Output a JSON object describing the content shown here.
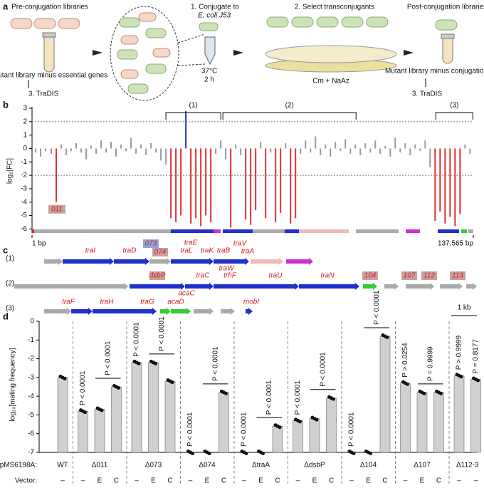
{
  "panel_labels": [
    "a",
    "b",
    "c",
    "d"
  ],
  "panel_a": {
    "pre_title": "Pre-conjugation libraries",
    "pre_caption": "Mutant library minus essential genes",
    "pre_tradis": "3. TraDIS",
    "step1": "1. Conjugate to",
    "step1_strain": "E. coli J53",
    "temp": "37°C",
    "time": "2 h",
    "step2": "2. Select transconjugants",
    "selection": "Cm + NaAz",
    "post_title": "Post-conjugation libraries",
    "post_caption": "Mutant library minus conjugation genes",
    "post_tradis": "3. TraDIS"
  },
  "chart_data": [
    {
      "type": "bar",
      "ylabel": "log₂[FC]",
      "xlim": [
        1,
        137565
      ],
      "xticks": [
        {
          "value": 1,
          "label": "1 bp"
        },
        {
          "value": 137565,
          "label": "137,565 bp"
        }
      ],
      "ylim": [
        -6.3,
        3
      ],
      "yticks": [
        -6,
        -5,
        -4,
        -3,
        -2,
        -1,
        0,
        1,
        2,
        3
      ],
      "reference_lines": [
        2,
        -2
      ],
      "regions": [
        {
          "label": "(1)",
          "start": 41736,
          "end": 58830
        },
        {
          "label": "(2)",
          "start": 59496,
          "end": 101010
        },
        {
          "label": "(3)",
          "start": 125874,
          "end": 137418
        }
      ],
      "series": [
        {
          "name": "grey",
          "color": "#9a9a9a",
          "x": [
            1110,
            2664,
            4218,
            5994,
            9102,
            10656,
            12210,
            13764,
            15318,
            16872,
            18426,
            19980,
            21534,
            23088,
            24642,
            26196,
            27750,
            29304,
            30858,
            32412,
            33966,
            35520,
            37074,
            38628,
            40182,
            41736,
            57276,
            58830,
            60384,
            63492,
            65046,
            71262,
            74370,
            79032,
            83694,
            85248,
            86802,
            88356,
            89910,
            91464,
            93018,
            94572,
            96126,
            97680,
            99234,
            100788,
            102342,
            103896,
            105450,
            107004,
            108558,
            110112,
            111666,
            113220,
            114774,
            116328,
            117882,
            119436,
            120990,
            122544,
            124098,
            134976,
            136530
          ],
          "values": [
            -0.3,
            -0.6,
            -0.2,
            -0.4,
            0.3,
            -0.5,
            -0.2,
            0.4,
            -0.3,
            -0.8,
            0.2,
            -0.4,
            0.6,
            -0.3,
            0.5,
            -0.6,
            0.3,
            -0.2,
            0.8,
            -0.4,
            0.3,
            -0.5,
            0.4,
            -0.3,
            -0.9,
            -1.2,
            -0.4,
            0.6,
            -0.8,
            0.3,
            -0.5,
            0.5,
            -0.3,
            0.4,
            -0.4,
            0.6,
            -0.3,
            0.9,
            -0.5,
            0.3,
            -0.6,
            0.5,
            -0.2,
            0.7,
            -0.4,
            0.3,
            -0.5,
            0.4,
            -0.3,
            0.6,
            -0.4,
            0.2,
            -0.6,
            0.8,
            -0.3,
            0.4,
            -0.5,
            0.3,
            -0.2,
            0.6,
            -1.4,
            0.3,
            -0.4
          ]
        },
        {
          "name": "red",
          "color": "#e03030",
          "x": [
            7548,
            43290,
            44844,
            46398,
            49506,
            51060,
            52614,
            54168,
            55722,
            61938,
            66600,
            68154,
            69708,
            72816,
            75924,
            77478,
            80586,
            82140,
            125652,
            127206,
            128760,
            130314,
            131868,
            133422
          ],
          "values": [
            -4,
            -5.2,
            -5.5,
            -5.0,
            -5.6,
            -5.2,
            -5.8,
            -5.0,
            -5.5,
            -5.9,
            -5.3,
            -5.7,
            -4.6,
            -5.2,
            -5.5,
            -4.8,
            -5.6,
            -5.2,
            -5.4,
            -4.7,
            -5.6,
            -5.1,
            -5.8,
            -4.9
          ],
          "gene_labels": [
            "011",
            null,
            null,
            null,
            null,
            null,
            null,
            null,
            null,
            null,
            null,
            null,
            null,
            null,
            null,
            null,
            null,
            null,
            null,
            null,
            null,
            null,
            null,
            null
          ]
        },
        {
          "name": "blue",
          "color": "#2030d0",
          "x": [
            47952
          ],
          "values": [
            2.8
          ]
        }
      ]
    },
    {
      "type": "bar",
      "ylabel": "log₁₀[mating frequency]",
      "ylim": [
        -7,
        0
      ],
      "yticks": [
        0,
        -1,
        -2,
        -3,
        -4,
        -5,
        -6,
        -7
      ],
      "row_labels": [
        "pMS6198A:",
        "Vector:"
      ],
      "groups": [
        {
          "strain": "WT",
          "vectors": [
            "–"
          ],
          "values": [
            -3.0
          ],
          "p_labels": [
            null
          ]
        },
        {
          "strain": "Δ011",
          "vectors": [
            "–",
            "E",
            "C"
          ],
          "values": [
            -4.8,
            -4.7,
            -3.5
          ],
          "p_labels": [
            "P < 0.0001",
            null,
            "P < 0.0001"
          ]
        },
        {
          "strain": "Δ073",
          "vectors": [
            "–",
            "E",
            "C"
          ],
          "values": [
            -2.2,
            -2.2,
            -3.2
          ],
          "p_labels": [
            "P < 0.0001",
            null,
            "P < 0.0001"
          ]
        },
        {
          "strain": "Δ074",
          "vectors": [
            "–",
            "E",
            "C"
          ],
          "values": [
            -7,
            -7,
            -3.8
          ],
          "p_labels": [
            "P < 0.0001",
            null,
            "P < 0.0001"
          ]
        },
        {
          "strain": "ΔtraA",
          "vectors": [
            "–",
            "E",
            "C"
          ],
          "values": [
            -7,
            -7,
            -5.6
          ],
          "p_labels": [
            "P < 0.0001",
            null,
            "P < 0.0001"
          ]
        },
        {
          "strain": "ΔdsbP",
          "vectors": [
            "–",
            "E",
            "C"
          ],
          "values": [
            -5.3,
            -5.2,
            -4.1
          ],
          "p_labels": [
            "P < 0.0001",
            null,
            "P < 0.0001"
          ]
        },
        {
          "strain": "Δ104",
          "vectors": [
            "–",
            "E",
            "C"
          ],
          "values": [
            -7,
            -7,
            -0.8
          ],
          "p_labels": [
            "P < 0.0001",
            null,
            "P < 0.0001"
          ]
        },
        {
          "strain": "Δ107",
          "vectors": [
            "–",
            "E",
            "C"
          ],
          "values": [
            -3.3,
            -3.8,
            -3.8
          ],
          "p_labels": [
            "P > 0.0254",
            null,
            "P = 0.9999"
          ]
        },
        {
          "strain": "Δ112-3",
          "vectors": [
            "–",
            "–"
          ],
          "values": [
            -2.9,
            -3.1
          ],
          "p_labels": [
            "P > 0.9999",
            "P = 0.8177"
          ]
        }
      ]
    }
  ],
  "panel_c": {
    "rows": [
      {
        "label": "(1)",
        "genes": [
          "traI",
          "traD",
          "073",
          "074",
          "traL",
          "traE",
          "traK",
          "traB",
          "traV",
          "traA"
        ]
      },
      {
        "label": "(2)",
        "genes": [
          "dsbP",
          "traC",
          "trhF",
          "traW",
          "traU",
          "traN",
          "104",
          "107",
          "112",
          "113"
        ]
      },
      {
        "label": "(3)",
        "genes": [
          "traF",
          "traH",
          "traG",
          "acaD",
          "acaC",
          "mobI"
        ]
      }
    ],
    "scale": "1 kb"
  }
}
